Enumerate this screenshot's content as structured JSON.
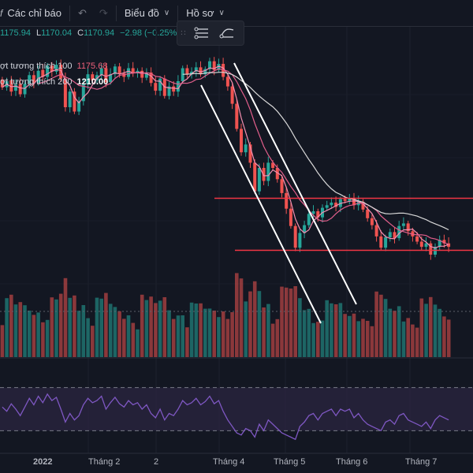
{
  "toolbar": {
    "indicators_label": "Các chỉ báo",
    "chart_type_label": "Biểu đồ",
    "profile_label": "Hồ sơ"
  },
  "ohlc": {
    "open_value": "1175.94",
    "low_label": "L",
    "low_value": "1170.04",
    "close_label": "C",
    "close_value": "1170.94",
    "change": "−2.98 (−0.25%)"
  },
  "legend": {
    "ma1_label": "ợt tương thích 100",
    "ma1_value": "1175.68",
    "ma2_label": "ợt tương thích 200",
    "ma2_value": "1210.00"
  },
  "colors": {
    "up": "#26a69a",
    "down": "#ef5350",
    "ma_fast": "#f48fb1",
    "ma_slow": "#d8d8d8",
    "ma_mid": "#e25f8c",
    "channel": "#ffffff",
    "level_line": "#f23645",
    "rsi_line": "#7e57c2",
    "rsi_bg": "#2b2540"
  },
  "chart_data": {
    "type": "candlestick",
    "x_ticks": [
      "2022",
      "Tháng 2",
      "2",
      "Tháng 4",
      "Tháng 5",
      "Tháng 6",
      "Tháng 7"
    ],
    "price_range": [
      1045,
      1345
    ],
    "horizontal_levels": [
      1180,
      1120
    ],
    "candles": [
      [
        1317,
        1308
      ],
      [
        1308,
        1315
      ],
      [
        1316,
        1303
      ],
      [
        1304,
        1311
      ],
      [
        1312,
        1300
      ],
      [
        1300,
        1312
      ],
      [
        1312,
        1322
      ],
      [
        1322,
        1313
      ],
      [
        1313,
        1327
      ],
      [
        1328,
        1320
      ],
      [
        1320,
        1333
      ],
      [
        1333,
        1326
      ],
      [
        1326,
        1334
      ],
      [
        1334,
        1318
      ],
      [
        1318,
        1285
      ],
      [
        1285,
        1303
      ],
      [
        1303,
        1280
      ],
      [
        1280,
        1292
      ],
      [
        1292,
        1312
      ],
      [
        1312,
        1323
      ],
      [
        1323,
        1316
      ],
      [
        1316,
        1322
      ],
      [
        1322,
        1330
      ],
      [
        1330,
        1314
      ],
      [
        1314,
        1323
      ],
      [
        1323,
        1332
      ],
      [
        1332,
        1324
      ],
      [
        1324,
        1320
      ],
      [
        1320,
        1330
      ],
      [
        1330,
        1324
      ],
      [
        1324,
        1327
      ],
      [
        1327,
        1319
      ],
      [
        1319,
        1325
      ],
      [
        1325,
        1313
      ],
      [
        1313,
        1304
      ],
      [
        1304,
        1318
      ],
      [
        1318,
        1298
      ],
      [
        1298,
        1309
      ],
      [
        1309,
        1303
      ],
      [
        1303,
        1315
      ],
      [
        1315,
        1330
      ],
      [
        1330,
        1323
      ],
      [
        1323,
        1326
      ],
      [
        1326,
        1331
      ],
      [
        1331,
        1323
      ],
      [
        1323,
        1329
      ],
      [
        1329,
        1338
      ],
      [
        1338,
        1328
      ],
      [
        1328,
        1335
      ],
      [
        1335,
        1320
      ],
      [
        1320,
        1309
      ],
      [
        1309,
        1289
      ],
      [
        1289,
        1260
      ],
      [
        1260,
        1233
      ],
      [
        1233,
        1242
      ],
      [
        1242,
        1221
      ],
      [
        1221,
        1188
      ],
      [
        1188,
        1215
      ],
      [
        1215,
        1200
      ],
      [
        1200,
        1221
      ],
      [
        1221,
        1215
      ],
      [
        1215,
        1202
      ],
      [
        1202,
        1186
      ],
      [
        1186,
        1168
      ],
      [
        1168,
        1148
      ],
      [
        1148,
        1123
      ],
      [
        1123,
        1140
      ],
      [
        1140,
        1149
      ],
      [
        1149,
        1162
      ],
      [
        1162,
        1165
      ],
      [
        1165,
        1158
      ],
      [
        1158,
        1169
      ],
      [
        1169,
        1172
      ],
      [
        1172,
        1175
      ],
      [
        1175,
        1170
      ],
      [
        1170,
        1179
      ],
      [
        1179,
        1177
      ],
      [
        1177,
        1180
      ],
      [
        1180,
        1172
      ],
      [
        1172,
        1176
      ],
      [
        1176,
        1167
      ],
      [
        1167,
        1157
      ],
      [
        1157,
        1149
      ],
      [
        1149,
        1136
      ],
      [
        1136,
        1123
      ],
      [
        1123,
        1135
      ],
      [
        1135,
        1141
      ],
      [
        1141,
        1134
      ],
      [
        1134,
        1148
      ],
      [
        1148,
        1151
      ],
      [
        1151,
        1142
      ],
      [
        1142,
        1136
      ],
      [
        1136,
        1130
      ],
      [
        1130,
        1124
      ],
      [
        1124,
        1128
      ],
      [
        1128,
        1115
      ],
      [
        1115,
        1124
      ],
      [
        1124,
        1132
      ],
      [
        1132,
        1128
      ],
      [
        1128,
        1124
      ]
    ],
    "indicator": {
      "name": "RSI",
      "band_upper": 70,
      "band_lower": 30,
      "values": [
        52,
        48,
        55,
        50,
        44,
        52,
        60,
        54,
        62,
        56,
        64,
        58,
        61,
        50,
        38,
        46,
        40,
        44,
        54,
        60,
        56,
        58,
        62,
        50,
        56,
        61,
        55,
        52,
        58,
        54,
        56,
        50,
        54,
        46,
        42,
        50,
        40,
        46,
        44,
        50,
        58,
        54,
        56,
        60,
        54,
        57,
        62,
        55,
        58,
        48,
        40,
        34,
        28,
        26,
        32,
        30,
        24,
        36,
        30,
        40,
        36,
        32,
        28,
        26,
        24,
        22,
        34,
        38,
        44,
        46,
        40,
        46,
        48,
        50,
        44,
        50,
        48,
        50,
        42,
        46,
        40,
        36,
        34,
        32,
        30,
        38,
        40,
        36,
        44,
        46,
        40,
        38,
        36,
        34,
        38,
        32,
        40,
        44,
        42,
        40
      ]
    }
  }
}
